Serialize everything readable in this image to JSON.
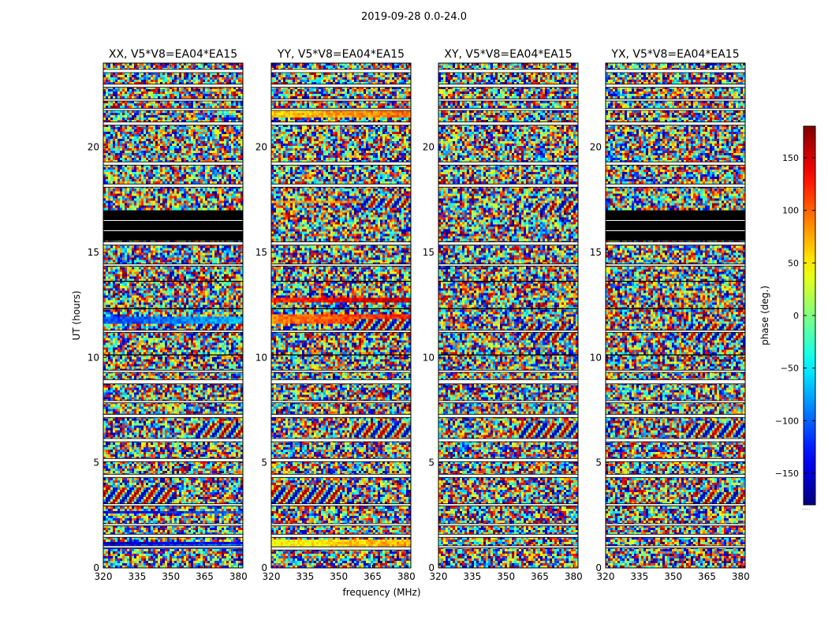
{
  "figure_title": "2019-09-28 0.0-24.0",
  "x_axis_label": "frequency (MHz)",
  "y_axis_label": "UT (hours)",
  "colorbar_label": "phase (deg.)",
  "colorbar_note": ".....",
  "chart_data": [
    {
      "type": "heatmap",
      "title": "XX, V5*V8=EA04*EA15",
      "xlabel": "",
      "ylabel": "UT (hours)",
      "xlim": [
        320,
        382
      ],
      "ylim": [
        0,
        24
      ],
      "xticks": [
        320,
        335,
        350,
        365,
        380
      ],
      "yticks": [
        0,
        5,
        10,
        15,
        20
      ],
      "colormap": "jet",
      "vmin": -180,
      "vmax": 180,
      "blank_bands_hours": [
        [
          0.95,
          1.05
        ],
        [
          1.45,
          1.6
        ],
        [
          2.0,
          2.1
        ],
        [
          2.95,
          3.05
        ],
        [
          4.3,
          4.45
        ],
        [
          5.05,
          5.2
        ],
        [
          6.0,
          6.15
        ],
        [
          7.15,
          7.3
        ],
        [
          7.85,
          7.95
        ],
        [
          8.75,
          8.95
        ],
        [
          9.3,
          9.4
        ],
        [
          11.2,
          11.3
        ],
        [
          14.35,
          14.45
        ],
        [
          15.35,
          15.5
        ],
        [
          18.1,
          18.25
        ],
        [
          19.15,
          19.3
        ],
        [
          21.05,
          21.2
        ],
        [
          21.75,
          21.85
        ],
        [
          22.2,
          22.3
        ],
        [
          22.85,
          23.0
        ],
        [
          23.55,
          23.7
        ]
      ],
      "flagged_black_hours": [
        [
          15.55,
          17.0
        ],
        [
          13.6,
          13.65
        ],
        [
          12.3,
          12.35
        ],
        [
          10.1,
          10.15
        ]
      ],
      "coherent_band_hours": [
        [
          0.95,
          1.25,
          -130
        ],
        [
          11.55,
          11.95,
          -110
        ],
        [
          2.6,
          2.7,
          -140
        ],
        [
          1.15,
          1.25,
          -165
        ]
      ],
      "fringe_patches": [
        [
          2.9,
          3.8,
          320,
          352
        ],
        [
          11.0,
          11.6,
          360,
          382
        ],
        [
          6.2,
          6.9,
          360,
          382
        ]
      ]
    },
    {
      "type": "heatmap",
      "title": "YY, V5*V8=EA04*EA15",
      "xlabel": "frequency (MHz)",
      "ylabel": "",
      "xlim": [
        320,
        382
      ],
      "ylim": [
        0,
        24
      ],
      "xticks": [
        320,
        335,
        350,
        365,
        380
      ],
      "yticks": [
        0,
        5,
        10,
        15,
        20
      ],
      "colormap": "jet",
      "vmin": -180,
      "vmax": 180,
      "blank_bands_hours": [
        [
          0.85,
          1.0
        ],
        [
          1.45,
          1.6
        ],
        [
          2.0,
          2.1
        ],
        [
          2.95,
          3.05
        ],
        [
          4.3,
          4.45
        ],
        [
          5.05,
          5.2
        ],
        [
          6.0,
          6.15
        ],
        [
          7.15,
          7.3
        ],
        [
          7.85,
          7.95
        ],
        [
          8.75,
          8.95
        ],
        [
          9.3,
          9.4
        ],
        [
          11.2,
          11.3
        ],
        [
          14.35,
          14.45
        ],
        [
          15.35,
          15.5
        ],
        [
          18.1,
          18.25
        ],
        [
          19.15,
          19.3
        ],
        [
          21.05,
          21.2
        ],
        [
          21.75,
          21.85
        ],
        [
          22.2,
          22.3
        ],
        [
          22.85,
          23.0
        ],
        [
          23.55,
          23.7
        ]
      ],
      "flagged_black_hours": [
        [
          13.6,
          13.65
        ],
        [
          12.3,
          12.35
        ],
        [
          10.1,
          10.15
        ]
      ],
      "coherent_band_hours": [
        [
          1.05,
          1.3,
          40
        ],
        [
          11.55,
          12.0,
          90
        ],
        [
          12.6,
          12.85,
          120
        ],
        [
          21.4,
          21.7,
          60
        ],
        [
          17.3,
          17.45,
          70
        ]
      ],
      "fringe_patches": [
        [
          2.9,
          3.8,
          320,
          352
        ],
        [
          11.0,
          11.8,
          356,
          382
        ],
        [
          6.2,
          6.9,
          356,
          382
        ],
        [
          17.1,
          17.6,
          360,
          382
        ]
      ]
    },
    {
      "type": "heatmap",
      "title": "XY, V5*V8=EA04*EA15",
      "xlabel": "",
      "ylabel": "",
      "xlim": [
        320,
        382
      ],
      "ylim": [
        0,
        24
      ],
      "xticks": [
        320,
        335,
        350,
        365,
        380
      ],
      "yticks": [
        0,
        5,
        10,
        15,
        20
      ],
      "colormap": "jet",
      "vmin": -180,
      "vmax": 180,
      "blank_bands_hours": [
        [
          0.95,
          1.05
        ],
        [
          1.45,
          1.6
        ],
        [
          2.0,
          2.1
        ],
        [
          2.95,
          3.05
        ],
        [
          4.3,
          4.45
        ],
        [
          5.05,
          5.2
        ],
        [
          6.0,
          6.15
        ],
        [
          7.15,
          7.3
        ],
        [
          7.85,
          7.95
        ],
        [
          8.75,
          8.95
        ],
        [
          9.3,
          9.4
        ],
        [
          11.2,
          11.3
        ],
        [
          14.35,
          14.45
        ],
        [
          15.35,
          15.5
        ],
        [
          18.1,
          18.25
        ],
        [
          19.15,
          19.3
        ],
        [
          21.05,
          21.2
        ],
        [
          21.75,
          21.85
        ],
        [
          22.2,
          22.3
        ],
        [
          22.85,
          23.0
        ],
        [
          23.55,
          23.7
        ]
      ],
      "flagged_black_hours": [
        [
          13.6,
          13.65
        ],
        [
          12.3,
          12.35
        ],
        [
          10.1,
          10.15
        ]
      ],
      "coherent_band_hours": [],
      "fringe_patches": [
        [
          10.8,
          11.6,
          355,
          382
        ],
        [
          6.2,
          6.9,
          355,
          382
        ],
        [
          16.9,
          17.4,
          360,
          382
        ]
      ]
    },
    {
      "type": "heatmap",
      "title": "YX, V5*V8=EA04*EA15",
      "xlabel": "",
      "ylabel": "",
      "xlim": [
        320,
        382
      ],
      "ylim": [
        0,
        24
      ],
      "xticks": [
        320,
        335,
        350,
        365,
        380
      ],
      "yticks": [
        0,
        5,
        10,
        15,
        20
      ],
      "colormap": "jet",
      "vmin": -180,
      "vmax": 180,
      "blank_bands_hours": [
        [
          0.95,
          1.05
        ],
        [
          1.45,
          1.6
        ],
        [
          2.0,
          2.1
        ],
        [
          2.95,
          3.05
        ],
        [
          4.3,
          4.45
        ],
        [
          5.05,
          5.2
        ],
        [
          6.0,
          6.15
        ],
        [
          7.15,
          7.3
        ],
        [
          7.85,
          7.95
        ],
        [
          8.75,
          8.95
        ],
        [
          9.3,
          9.4
        ],
        [
          11.2,
          11.3
        ],
        [
          14.35,
          14.45
        ],
        [
          15.35,
          15.5
        ],
        [
          18.1,
          18.25
        ],
        [
          19.15,
          19.3
        ],
        [
          21.05,
          21.2
        ],
        [
          21.75,
          21.85
        ],
        [
          22.2,
          22.3
        ],
        [
          22.85,
          23.0
        ],
        [
          23.55,
          23.7
        ]
      ],
      "flagged_black_hours": [
        [
          15.55,
          17.0
        ],
        [
          13.6,
          13.65
        ],
        [
          12.3,
          12.35
        ],
        [
          10.1,
          10.15
        ]
      ],
      "coherent_band_hours": [],
      "fringe_patches": [
        [
          10.8,
          11.6,
          355,
          382
        ],
        [
          6.2,
          6.9,
          355,
          382
        ],
        [
          2.9,
          3.6,
          360,
          382
        ]
      ]
    },
    {
      "type": "colorbar",
      "label": "phase (deg.)",
      "colormap": "jet",
      "range": [
        -180,
        180
      ],
      "ticks": [
        150,
        100,
        50,
        0,
        -50,
        -100,
        -150
      ],
      "tick_labels": [
        "150",
        "100",
        "50",
        "0",
        "−50",
        "−100",
        "−150"
      ]
    }
  ]
}
